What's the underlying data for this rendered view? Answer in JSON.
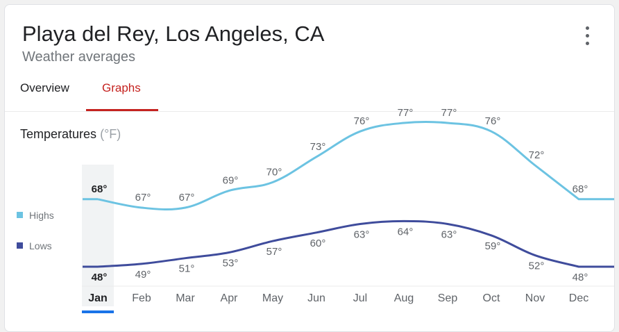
{
  "header": {
    "title": "Playa del Rey, Los Angeles, CA",
    "subtitle": "Weather averages",
    "menu_icon": "more-vert-icon"
  },
  "tabs": [
    {
      "label": "Overview",
      "active": false
    },
    {
      "label": "Graphs",
      "active": true
    }
  ],
  "section": {
    "title": "Temperatures",
    "unit": "(°F)"
  },
  "legend": {
    "highs": {
      "label": "Highs",
      "color": "#6cc3e2"
    },
    "lows": {
      "label": "Lows",
      "color": "#3f4c9c"
    }
  },
  "colors": {
    "accent": "#c5221f",
    "selected_month": "#1a73e8"
  },
  "selected_month": "Jan",
  "chart_data": {
    "type": "line",
    "title": "Temperatures (°F)",
    "categories": [
      "Jan",
      "Feb",
      "Mar",
      "Apr",
      "May",
      "Jun",
      "Jul",
      "Aug",
      "Sep",
      "Oct",
      "Nov",
      "Dec"
    ],
    "series": [
      {
        "name": "Highs",
        "values": [
          68,
          67,
          67,
          69,
          70,
          73,
          76,
          77,
          77,
          76,
          72,
          68
        ],
        "labels": [
          "68°",
          "67°",
          "67°",
          "69°",
          "70°",
          "73°",
          "76°",
          "77°",
          "77°",
          "76°",
          "72°",
          "68°"
        ]
      },
      {
        "name": "Lows",
        "values": [
          48,
          49,
          51,
          53,
          57,
          60,
          63,
          64,
          63,
          59,
          52,
          48
        ],
        "labels": [
          "48°",
          "49°",
          "51°",
          "53°",
          "57°",
          "60°",
          "63°",
          "64°",
          "63°",
          "59°",
          "52°",
          "48°"
        ]
      }
    ],
    "ylabel": "°F",
    "ylim": [
      48,
      77
    ]
  }
}
